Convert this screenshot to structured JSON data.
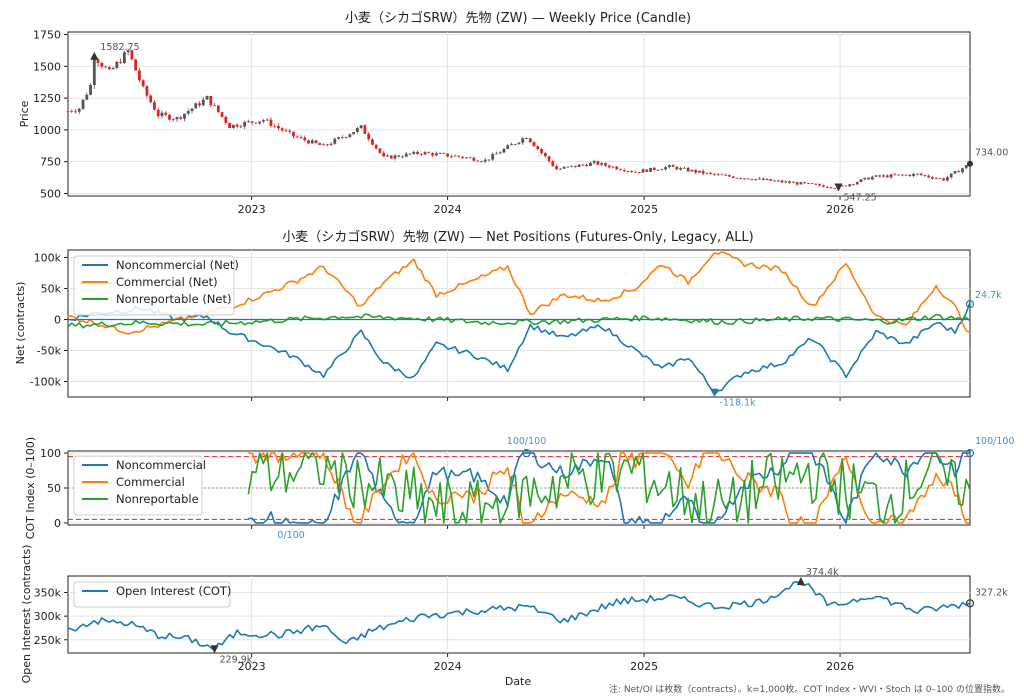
{
  "figure": {
    "note": "注: Net/OI は枚数（contracts）。k=1,000枚。COT Index・WVI・Stoch は 0–100 の位置指数。",
    "xlabel": "Date",
    "x_ticks": [
      "2023",
      "2024",
      "2025",
      "2026"
    ]
  },
  "chart_data": [
    {
      "type": "candlestick",
      "title": "小麦（シカゴSRW）先物 (ZW) — Weekly Price (Candle)",
      "ylabel": "Price",
      "y_ticks": [
        "500",
        "750",
        "1000",
        "1250",
        "1500",
        "1750"
      ],
      "ylim": [
        480,
        1770
      ],
      "x_range": [
        "2022-01-24",
        "2026-08-31"
      ],
      "up_color": "#555555",
      "down_color": "#d62728",
      "price_anchors": [
        {
          "date": "2022-01-24",
          "close": 1150
        },
        {
          "date": "2022-02-14",
          "close": 1170
        },
        {
          "date": "2022-03-07",
          "close": 1350
        },
        {
          "date": "2022-03-14",
          "close": 1582.75
        },
        {
          "date": "2022-04-11",
          "close": 1450
        },
        {
          "date": "2022-05-16",
          "close": 1620
        },
        {
          "date": "2022-06-13",
          "close": 1320
        },
        {
          "date": "2022-07-11",
          "close": 1120
        },
        {
          "date": "2022-08-15",
          "close": 1090
        },
        {
          "date": "2022-10-10",
          "close": 1250
        },
        {
          "date": "2022-11-21",
          "close": 1030
        },
        {
          "date": "2023-01-23",
          "close": 1080
        },
        {
          "date": "2023-03-20",
          "close": 950
        },
        {
          "date": "2023-05-15",
          "close": 870
        },
        {
          "date": "2023-07-24",
          "close": 1020
        },
        {
          "date": "2023-09-04",
          "close": 780
        },
        {
          "date": "2023-11-13",
          "close": 820
        },
        {
          "date": "2024-01-22",
          "close": 790
        },
        {
          "date": "2024-03-11",
          "close": 760
        },
        {
          "date": "2024-05-27",
          "close": 950
        },
        {
          "date": "2024-07-22",
          "close": 690
        },
        {
          "date": "2024-09-30",
          "close": 740
        },
        {
          "date": "2024-12-16",
          "close": 670
        },
        {
          "date": "2025-02-17",
          "close": 710
        },
        {
          "date": "2025-05-05",
          "close": 650
        },
        {
          "date": "2025-08-25",
          "close": 600
        },
        {
          "date": "2025-12-08",
          "close": 557
        },
        {
          "date": "2025-12-29",
          "close": 547.25
        },
        {
          "date": "2026-03-02",
          "close": 630
        },
        {
          "date": "2026-05-25",
          "close": 650
        },
        {
          "date": "2026-07-13",
          "close": 610
        },
        {
          "date": "2026-08-31",
          "close": 734
        }
      ],
      "annotations": [
        {
          "label": "1582.75",
          "date": "2022-03-14",
          "value": 1582.75
        },
        {
          "label": "547.25",
          "date": "2025-12-29",
          "value": 547.25
        },
        {
          "label": "734.00",
          "date": "2026-08-31",
          "value": 734
        }
      ]
    },
    {
      "type": "line",
      "title": "小麦（シカゴSRW）先物 (ZW) — Net Positions (Futures-Only, Legacy, ALL)",
      "ylabel": "Net (contracts)",
      "y_ticks": [
        "-100k",
        "-50k",
        "0",
        "50k",
        "100k"
      ],
      "ylim": [
        -125000,
        112000
      ],
      "legend_position": "top-left",
      "series": [
        {
          "name": "Noncommercial (Net)",
          "color": "#1f77b4",
          "anchors": [
            [
              "2022-01-24",
              0
            ],
            [
              "2022-03-14",
              10000
            ],
            [
              "2022-05-16",
              15000
            ],
            [
              "2022-06-13",
              18000
            ],
            [
              "2022-08-15",
              0
            ],
            [
              "2022-10-10",
              5000
            ],
            [
              "2022-11-21",
              -20000
            ],
            [
              "2023-01-23",
              -40000
            ],
            [
              "2023-03-20",
              -60000
            ],
            [
              "2023-05-15",
              -90000
            ],
            [
              "2023-07-24",
              -20000
            ],
            [
              "2023-09-04",
              -70000
            ],
            [
              "2023-10-30",
              -95000
            ],
            [
              "2023-12-11",
              -40000
            ],
            [
              "2024-02-12",
              -55000
            ],
            [
              "2024-04-22",
              -80000
            ],
            [
              "2024-06-03",
              -10000
            ],
            [
              "2024-08-05",
              -30000
            ],
            [
              "2024-10-14",
              -10000
            ],
            [
              "2024-12-16",
              -50000
            ],
            [
              "2025-02-03",
              -80000
            ],
            [
              "2025-03-24",
              -60000
            ],
            [
              "2025-05-12",
              -118100
            ],
            [
              "2025-07-07",
              -85000
            ],
            [
              "2025-09-15",
              -70000
            ],
            [
              "2025-11-10",
              -30000
            ],
            [
              "2026-01-12",
              -90000
            ],
            [
              "2026-03-09",
              -20000
            ],
            [
              "2026-05-04",
              -40000
            ],
            [
              "2026-06-29",
              -5000
            ],
            [
              "2026-08-03",
              -20000
            ],
            [
              "2026-08-31",
              24700
            ]
          ]
        },
        {
          "name": "Commercial (Net)",
          "color": "#ff7f0e",
          "anchors": [
            [
              "2022-01-24",
              5000
            ],
            [
              "2022-03-14",
              -5000
            ],
            [
              "2022-05-16",
              -20000
            ],
            [
              "2022-07-11",
              -10000
            ],
            [
              "2022-09-12",
              5000
            ],
            [
              "2022-11-21",
              20000
            ],
            [
              "2023-01-23",
              40000
            ],
            [
              "2023-03-20",
              60000
            ],
            [
              "2023-05-15",
              85000
            ],
            [
              "2023-07-24",
              20000
            ],
            [
              "2023-09-04",
              60000
            ],
            [
              "2023-10-30",
              95000
            ],
            [
              "2023-12-11",
              40000
            ],
            [
              "2024-02-12",
              60000
            ],
            [
              "2024-04-22",
              85000
            ],
            [
              "2024-06-03",
              10000
            ],
            [
              "2024-08-05",
              40000
            ],
            [
              "2024-10-14",
              30000
            ],
            [
              "2024-12-16",
              50000
            ],
            [
              "2025-02-03",
              90000
            ],
            [
              "2025-03-24",
              60000
            ],
            [
              "2025-05-12",
              110000
            ],
            [
              "2025-07-07",
              90000
            ],
            [
              "2025-09-15",
              80000
            ],
            [
              "2025-11-10",
              20000
            ],
            [
              "2026-01-12",
              90000
            ],
            [
              "2026-03-09",
              5000
            ],
            [
              "2026-05-04",
              -10000
            ],
            [
              "2026-06-29",
              55000
            ],
            [
              "2026-08-03",
              20000
            ],
            [
              "2026-08-31",
              -25000
            ]
          ]
        },
        {
          "name": "Nonreportable (Net)",
          "color": "#2ca02c",
          "anchors": [
            [
              "2022-01-24",
              -10000
            ],
            [
              "2022-06-13",
              -5000
            ],
            [
              "2022-10-10",
              -8000
            ],
            [
              "2023-03-20",
              0
            ],
            [
              "2023-06-19",
              5000
            ],
            [
              "2023-10-30",
              2000
            ],
            [
              "2024-03-11",
              -5000
            ],
            [
              "2024-08-05",
              -3000
            ],
            [
              "2025-01-06",
              3000
            ],
            [
              "2025-06-02",
              -4000
            ],
            [
              "2025-11-10",
              2000
            ],
            [
              "2026-04-06",
              -3000
            ],
            [
              "2026-06-29",
              5000
            ],
            [
              "2026-08-31",
              0
            ]
          ]
        }
      ],
      "annotations": [
        {
          "label": "24.7k",
          "date": "2026-08-31",
          "value": 24700
        },
        {
          "label": "-118.1k",
          "date": "2025-05-12",
          "value": -118100
        }
      ]
    },
    {
      "type": "line",
      "title": "",
      "ylabel": "COT Index (0–100)",
      "y_ticks": [
        "0",
        "50",
        "100"
      ],
      "ylim": [
        -3,
        103
      ],
      "reference_lines": [
        {
          "value": 95,
          "style": "dashed",
          "color": "#d62728"
        },
        {
          "value": 50,
          "style": "dotted",
          "color": "#999999"
        },
        {
          "value": 5,
          "style": "dashed",
          "color": "#d62728"
        }
      ],
      "legend_position": "top-left",
      "series": [
        {
          "name": "Noncommercial",
          "color": "#1f77b4"
        },
        {
          "name": "Commercial",
          "color": "#ff7f0e"
        },
        {
          "name": "Nonreportable",
          "color": "#2ca02c"
        }
      ],
      "annotations": [
        {
          "label": "100/100",
          "date": "2024-05-27",
          "value": 100
        },
        {
          "label": "100/100",
          "date": "2026-08-31",
          "value": 100
        },
        {
          "label": "0/100",
          "date": "2023-01-23",
          "value": 0
        }
      ]
    },
    {
      "type": "line",
      "title": "",
      "ylabel": "Open Interest (contracts)",
      "y_ticks": [
        "250k",
        "300k",
        "350k"
      ],
      "ylim": [
        222000,
        385000
      ],
      "legend_position": "top-left",
      "series": [
        {
          "name": "Open Interest (COT)",
          "color": "#1f77b4",
          "anchors": [
            [
              "2022-01-24",
              270000
            ],
            [
              "2022-03-14",
              290000
            ],
            [
              "2022-05-16",
              285000
            ],
            [
              "2022-07-11",
              260000
            ],
            [
              "2022-09-12",
              250000
            ],
            [
              "2022-10-24",
              229900
            ],
            [
              "2022-12-05",
              265000
            ],
            [
              "2023-02-20",
              260000
            ],
            [
              "2023-05-15",
              280000
            ],
            [
              "2023-06-26",
              240000
            ],
            [
              "2023-08-14",
              270000
            ],
            [
              "2023-11-13",
              300000
            ],
            [
              "2024-02-12",
              310000
            ],
            [
              "2024-05-27",
              320000
            ],
            [
              "2024-08-05",
              290000
            ],
            [
              "2024-11-11",
              330000
            ],
            [
              "2025-02-17",
              340000
            ],
            [
              "2025-05-12",
              320000
            ],
            [
              "2025-08-04",
              330000
            ],
            [
              "2025-10-20",
              374400
            ],
            [
              "2025-12-15",
              320000
            ],
            [
              "2026-03-02",
              345000
            ],
            [
              "2026-05-25",
              310000
            ],
            [
              "2026-08-31",
              327200
            ]
          ]
        }
      ],
      "annotations": [
        {
          "label": "374.4k",
          "date": "2025-10-20",
          "value": 374400
        },
        {
          "label": "229.9k",
          "date": "2022-10-24",
          "value": 229900
        },
        {
          "label": "327.2k",
          "date": "2026-08-31",
          "value": 327200
        }
      ]
    }
  ]
}
